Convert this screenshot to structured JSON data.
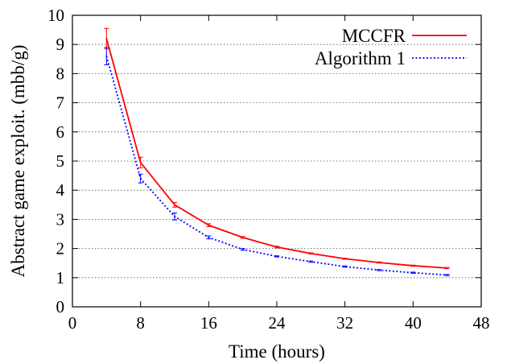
{
  "chart_data": {
    "type": "line",
    "title": "",
    "xlabel": "Time (hours)",
    "ylabel": "Abstract game exploit. (mbb/g)",
    "xlim": [
      0,
      48
    ],
    "ylim": [
      0,
      10
    ],
    "xticks": [
      "0",
      "8",
      "16",
      "24",
      "32",
      "40",
      "48"
    ],
    "yticks": [
      "0",
      "1",
      "2",
      "3",
      "4",
      "5",
      "6",
      "7",
      "8",
      "9",
      "10"
    ],
    "grid": "horizontal dotted",
    "legend_position": "top-right",
    "series": [
      {
        "name": "MCCFR",
        "color": "#ff0000",
        "style": "solid",
        "x": [
          4,
          8,
          12,
          16,
          20,
          24,
          28,
          32,
          36,
          40,
          44
        ],
        "y": [
          9.2,
          4.95,
          3.5,
          2.8,
          2.38,
          2.05,
          1.83,
          1.65,
          1.52,
          1.41,
          1.33
        ],
        "err": [
          0.35,
          0.18,
          0.08,
          0.05,
          0.03,
          0.03,
          0.02,
          0.02,
          0.02,
          0.02,
          0.02
        ]
      },
      {
        "name": "Algorithm 1",
        "color": "#0000ff",
        "style": "dotted",
        "x": [
          4,
          8,
          12,
          16,
          20,
          24,
          28,
          32,
          36,
          40,
          44
        ],
        "y": [
          8.6,
          4.4,
          3.1,
          2.38,
          1.97,
          1.73,
          1.55,
          1.38,
          1.26,
          1.17,
          1.09
        ],
        "err": [
          0.3,
          0.15,
          0.12,
          0.05,
          0.03,
          0.02,
          0.02,
          0.02,
          0.02,
          0.02,
          0.02
        ]
      }
    ]
  }
}
